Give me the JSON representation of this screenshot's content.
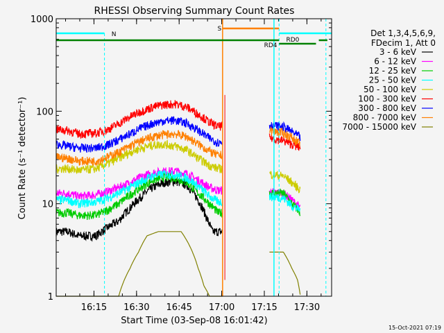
{
  "chart_data": {
    "type": "line",
    "title": "RHESSI Observing Summary Count Rates",
    "xlabel": "Start Time (03-Sep-08 16:01:42)",
    "ylabel": "Count Rate (s⁻¹ detector⁻¹)",
    "yscale": "log",
    "xlim_minutes": [
      0,
      97
    ],
    "ylim": [
      1,
      1000
    ],
    "x_ticks": [
      {
        "label": "16:15",
        "minute": 13.3
      },
      {
        "label": "16:30",
        "minute": 28.3
      },
      {
        "label": "16:45",
        "minute": 43.3
      },
      {
        "label": "17:00",
        "minute": 58.3
      },
      {
        "label": "17:15",
        "minute": 73.3
      },
      {
        "label": "17:30",
        "minute": 88.3
      }
    ],
    "y_ticks": [
      {
        "label": "1",
        "value": 1
      },
      {
        "label": "10",
        "value": 10
      },
      {
        "label": "100",
        "value": 100
      },
      {
        "label": "1000",
        "value": 1000
      }
    ],
    "legend_title": [
      "Det 1,3,4,5,6,9,",
      "FDecim 1, Att 0"
    ],
    "legend_position": "right",
    "series": [
      {
        "name": "3 - 6 keV",
        "color": "#000000",
        "points": [
          [
            0,
            5
          ],
          [
            4,
            5
          ],
          [
            8,
            4.5
          ],
          [
            14,
            4.5
          ],
          [
            18,
            5.5
          ],
          [
            22,
            6.5
          ],
          [
            26,
            9
          ],
          [
            30,
            12
          ],
          [
            34,
            15
          ],
          [
            38,
            17
          ],
          [
            42,
            17.5
          ],
          [
            46,
            16
          ],
          [
            50,
            11
          ],
          [
            53,
            7
          ],
          [
            55,
            5
          ],
          [
            57,
            5
          ],
          [
            58.5,
            5
          ]
        ]
      },
      {
        "name": "6 - 12 keV",
        "color": "#ff00ff",
        "points": [
          [
            0,
            13
          ],
          [
            4,
            13
          ],
          [
            8,
            12
          ],
          [
            14,
            12.5
          ],
          [
            18,
            13.5
          ],
          [
            22,
            15
          ],
          [
            26,
            17
          ],
          [
            30,
            19.5
          ],
          [
            34,
            21.5
          ],
          [
            38,
            22.5
          ],
          [
            42,
            22.5
          ],
          [
            46,
            21
          ],
          [
            50,
            18
          ],
          [
            54,
            15
          ],
          [
            57,
            14
          ],
          [
            58.5,
            14
          ],
          [
            75,
            13.5
          ],
          [
            80,
            13
          ],
          [
            83,
            11
          ],
          [
            86,
            9
          ]
        ]
      },
      {
        "name": "12 - 25 keV",
        "color": "#00cc00",
        "points": [
          [
            0,
            8
          ],
          [
            4,
            8
          ],
          [
            8,
            7.5
          ],
          [
            14,
            7.5
          ],
          [
            18,
            8.5
          ],
          [
            22,
            10
          ],
          [
            26,
            12.5
          ],
          [
            30,
            15
          ],
          [
            34,
            18
          ],
          [
            38,
            19.5
          ],
          [
            42,
            19
          ],
          [
            46,
            17
          ],
          [
            50,
            13
          ],
          [
            54,
            10
          ],
          [
            57,
            8
          ],
          [
            58.5,
            8
          ],
          [
            75,
            13
          ],
          [
            80,
            13
          ],
          [
            83,
            10
          ],
          [
            86,
            8
          ]
        ]
      },
      {
        "name": "25 - 50 keV",
        "color": "#00ffff",
        "points": [
          [
            0,
            11
          ],
          [
            4,
            11
          ],
          [
            8,
            10
          ],
          [
            14,
            10.5
          ],
          [
            18,
            11.5
          ],
          [
            22,
            13
          ],
          [
            26,
            15
          ],
          [
            30,
            17.5
          ],
          [
            34,
            20
          ],
          [
            38,
            21
          ],
          [
            42,
            20.5
          ],
          [
            46,
            19
          ],
          [
            50,
            15.5
          ],
          [
            54,
            12
          ],
          [
            57,
            10.5
          ],
          [
            58.5,
            10.5
          ],
          [
            75,
            12
          ],
          [
            80,
            11.5
          ],
          [
            83,
            9.5
          ],
          [
            86,
            8.5
          ]
        ]
      },
      {
        "name": "50 - 100 keV",
        "color": "#cccc00",
        "points": [
          [
            0,
            24
          ],
          [
            4,
            24
          ],
          [
            8,
            23
          ],
          [
            14,
            24
          ],
          [
            18,
            27
          ],
          [
            22,
            31
          ],
          [
            26,
            36
          ],
          [
            30,
            40
          ],
          [
            34,
            43
          ],
          [
            38,
            44
          ],
          [
            42,
            42
          ],
          [
            46,
            38
          ],
          [
            50,
            31
          ],
          [
            54,
            26
          ],
          [
            57,
            24
          ],
          [
            58.5,
            24
          ],
          [
            75,
            21
          ],
          [
            80,
            20
          ],
          [
            83,
            17
          ],
          [
            86,
            14
          ]
        ]
      },
      {
        "name": "100 - 300 keV",
        "color": "#ff0000",
        "points": [
          [
            0,
            64
          ],
          [
            4,
            62
          ],
          [
            8,
            57
          ],
          [
            14,
            58
          ],
          [
            18,
            63
          ],
          [
            22,
            73
          ],
          [
            26,
            87
          ],
          [
            30,
            100
          ],
          [
            34,
            111
          ],
          [
            38,
            118
          ],
          [
            42,
            120
          ],
          [
            46,
            111
          ],
          [
            50,
            93
          ],
          [
            54,
            76
          ],
          [
            57,
            68
          ],
          [
            58.5,
            70
          ],
          [
            59.5,
            140
          ],
          [
            75,
            52
          ],
          [
            80,
            48
          ],
          [
            83,
            44
          ],
          [
            86,
            40
          ]
        ]
      },
      {
        "name": "300 - 800 keV",
        "color": "#0000ff",
        "points": [
          [
            0,
            44
          ],
          [
            4,
            42
          ],
          [
            8,
            40
          ],
          [
            14,
            40
          ],
          [
            18,
            43
          ],
          [
            22,
            49
          ],
          [
            26,
            57
          ],
          [
            30,
            66
          ],
          [
            34,
            74
          ],
          [
            38,
            79
          ],
          [
            42,
            80
          ],
          [
            46,
            74
          ],
          [
            50,
            62
          ],
          [
            54,
            51
          ],
          [
            57,
            46
          ],
          [
            58.5,
            46
          ],
          [
            75,
            71
          ],
          [
            80,
            68
          ],
          [
            83,
            60
          ],
          [
            86,
            52
          ]
        ]
      },
      {
        "name": "800 - 7000 keV",
        "color": "#ff8000",
        "points": [
          [
            0,
            32
          ],
          [
            4,
            31
          ],
          [
            8,
            29
          ],
          [
            14,
            29
          ],
          [
            18,
            32
          ],
          [
            22,
            36
          ],
          [
            26,
            42
          ],
          [
            30,
            48
          ],
          [
            34,
            53
          ],
          [
            38,
            56
          ],
          [
            42,
            57
          ],
          [
            46,
            53
          ],
          [
            50,
            44
          ],
          [
            54,
            37
          ],
          [
            57,
            33
          ],
          [
            58.5,
            34
          ],
          [
            75,
            62
          ],
          [
            80,
            58
          ],
          [
            83,
            52
          ],
          [
            86,
            44
          ]
        ]
      },
      {
        "name": "7000 - 15000 keV",
        "color": "#808000",
        "points": [
          [
            0,
            1
          ],
          [
            22,
            1
          ],
          [
            24,
            1.5
          ],
          [
            26,
            2
          ],
          [
            29,
            3
          ],
          [
            32,
            4.5
          ],
          [
            36,
            5
          ],
          [
            40,
            5
          ],
          [
            44,
            5
          ],
          [
            48,
            3
          ],
          [
            50,
            2
          ],
          [
            52,
            1.3
          ],
          [
            54,
            1
          ],
          [
            58.5,
            1
          ],
          [
            75,
            3
          ],
          [
            80,
            3
          ],
          [
            83,
            2
          ],
          [
            85,
            1.5
          ],
          [
            86,
            1
          ]
        ]
      }
    ],
    "annotations": {
      "night_label": "N",
      "saa_label": "S",
      "rd4_label": "RD4",
      "rd0_label": "RD0"
    },
    "timestamp": "15-Oct-2021 07:19"
  }
}
